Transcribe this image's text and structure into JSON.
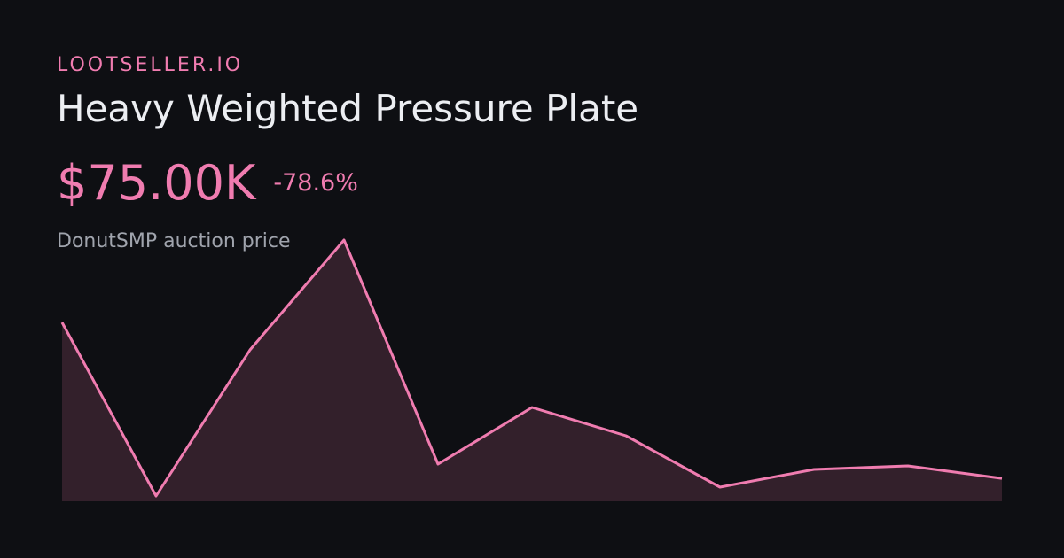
{
  "brand": "LOOTSELLER.IO",
  "title": "Heavy Weighted Pressure Plate",
  "price": "$75.00K",
  "change": "-78.6%",
  "subtitle": "DonutSMP auction price",
  "chart_data": {
    "type": "area",
    "color": "#f07cb0",
    "fill": "#33202b",
    "values": [
      350500,
      43800,
      302000,
      496000,
      100200,
      200300,
      150200,
      59500,
      90800,
      97000,
      75000
    ]
  }
}
